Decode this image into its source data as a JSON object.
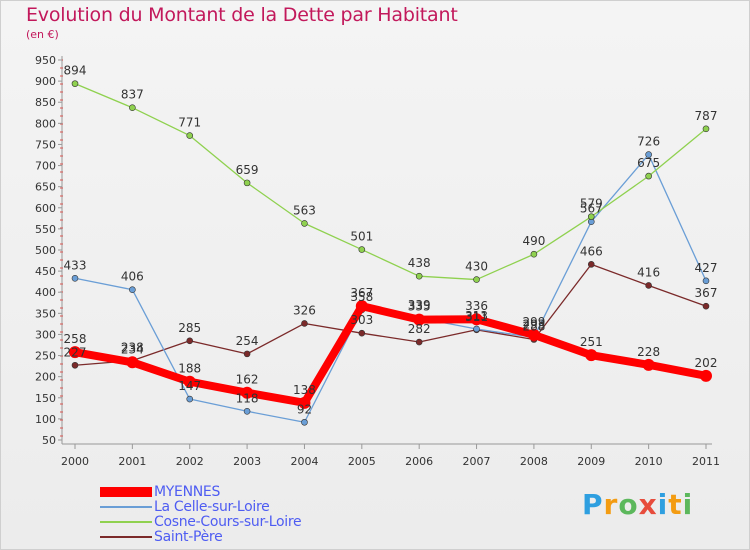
{
  "title": "Evolution du Montant de la Dette par Habitant",
  "subtitle": "(en €)",
  "logo": {
    "letters": [
      "P",
      "r",
      "o",
      "x",
      "i",
      "t",
      "i"
    ],
    "colors": [
      "#2e9fe0",
      "#f39c12",
      "#5cb85c",
      "#e74c3c",
      "#2e9fe0",
      "#f39c12",
      "#5cb85c"
    ]
  },
  "chart_data": {
    "type": "line",
    "categories": [
      "2000",
      "2001",
      "2002",
      "2003",
      "2004",
      "2005",
      "2006",
      "2007",
      "2008",
      "2009",
      "2010",
      "2011"
    ],
    "ylim": [
      50,
      950
    ],
    "yticks": [
      50,
      100,
      150,
      200,
      250,
      300,
      350,
      400,
      450,
      500,
      550,
      600,
      650,
      700,
      750,
      800,
      850,
      900,
      950
    ],
    "grid": false,
    "legend_position": "bottom-left",
    "series": [
      {
        "name": "MYENNES",
        "color": "#ff0000",
        "values": [
          258,
          234,
          188,
          162,
          138,
          367,
          335,
          336,
          299,
          251,
          228,
          202
        ],
        "labels": [
          "258",
          "234",
          "188",
          "162",
          "138",
          "367",
          "335",
          "336",
          "299",
          "251",
          "228",
          "202"
        ]
      },
      {
        "name": "La Celle-sur-Loire",
        "color": "#6a9ed6",
        "values": [
          433,
          406,
          147,
          118,
          92,
          358,
          339,
          313,
          293,
          567,
          726,
          427
        ],
        "labels": [
          "433",
          "406",
          "147",
          "118",
          "92",
          "358",
          "339",
          "313",
          "293",
          "567",
          "726",
          "427"
        ]
      },
      {
        "name": "Cosne-Cours-sur-Loire",
        "color": "#8fd14f",
        "values": [
          894,
          837,
          771,
          659,
          563,
          501,
          438,
          430,
          490,
          579,
          675,
          787
        ],
        "labels": [
          "894",
          "837",
          "771",
          "659",
          "563",
          "501",
          "438",
          "430",
          "490",
          "579",
          "675",
          "787"
        ]
      },
      {
        "name": "Saint-Père",
        "color": "#7b2a2a",
        "values": [
          227,
          238,
          285,
          254,
          326,
          303,
          282,
          311,
          288,
          466,
          416,
          367
        ],
        "labels": [
          "227",
          "238",
          "285",
          "254",
          "326",
          "303",
          "282",
          "311",
          "288",
          "466",
          "416",
          "367"
        ]
      }
    ]
  }
}
